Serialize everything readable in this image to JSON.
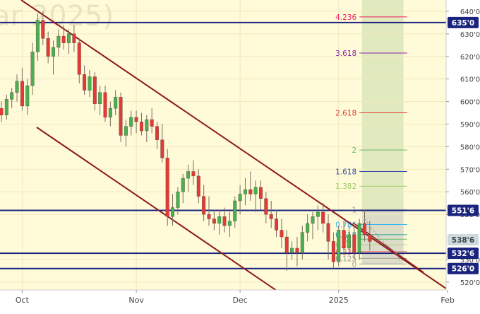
{
  "watermark": "ar 2025)",
  "chart_data": {
    "type": "candlestick",
    "colors": {
      "background": "#fffbd9",
      "up": "#4caf50",
      "down": "#e53935",
      "wick": "#7a6a60",
      "channel": "#8b1a1a",
      "level": "#1a237e",
      "projection_zone": "#c8dca8",
      "axis_text": "#444444"
    },
    "y_axis": {
      "min": 516.5,
      "max": 645,
      "ticks": [
        "640'0",
        "630'0",
        "620'0",
        "610'0",
        "600'0",
        "590'0",
        "580'0",
        "570'0",
        "560'0",
        "550'0",
        "530'0",
        "520'0"
      ],
      "tick_values": [
        640,
        630,
        620,
        610,
        600,
        590,
        580,
        570,
        560,
        550,
        530,
        520
      ]
    },
    "x_axis": {
      "labels": [
        {
          "text": "Oct",
          "index": 4
        },
        {
          "text": "Nov",
          "index": 26
        },
        {
          "text": "Dec",
          "index": 46
        },
        {
          "text": "2025",
          "index": 65
        },
        {
          "text": "Feb",
          "index": 86
        }
      ]
    },
    "levels": [
      {
        "label": "635'0",
        "value": 635.0
      },
      {
        "label": "551'6",
        "value": 551.75
      },
      {
        "label": "532'6",
        "value": 532.75
      },
      {
        "label": "526'0",
        "value": 526.0
      }
    ],
    "last_price": {
      "label": "538'6",
      "value": 538.75
    },
    "fibonacci": [
      {
        "label": "0",
        "value": 528.0,
        "color": "#9e9e9e"
      },
      {
        "label": "0.125",
        "value": 530.5,
        "color": "#9e9e9e"
      },
      {
        "label": "0.236",
        "value": 533.5,
        "color": "#e57373"
      },
      {
        "label": "0.382",
        "value": 536.5,
        "color": "#aed581"
      },
      {
        "label": "0.5",
        "value": 539.0,
        "color": "#66bb6a"
      },
      {
        "label": "0.618",
        "value": 541.0,
        "color": "#26a69a"
      },
      {
        "label": "0.786",
        "value": 545.5,
        "color": "#29b6f6"
      },
      {
        "label": "1",
        "value": 552.0,
        "color": "#9e9e9e"
      },
      {
        "label": "1.382",
        "value": 562.5,
        "color": "#9ccc65"
      },
      {
        "label": "1.618",
        "value": 569.0,
        "color": "#3949ab"
      },
      {
        "label": "2",
        "value": 578.5,
        "color": "#66bb6a"
      },
      {
        "label": "2.618",
        "value": 595.0,
        "color": "#e53935"
      },
      {
        "label": "3.618",
        "value": 621.5,
        "color": "#8e24aa"
      },
      {
        "label": "4.236",
        "value": 637.5,
        "color": "#e91e63"
      }
    ],
    "candles": [
      [
        597,
        600,
        591,
        594
      ],
      [
        594,
        603,
        592,
        601
      ],
      [
        601,
        606,
        597,
        604
      ],
      [
        604,
        612,
        600,
        609
      ],
      [
        609,
        615,
        596,
        598
      ],
      [
        598,
        610,
        594,
        607
      ],
      [
        607,
        626,
        603,
        622
      ],
      [
        622,
        639,
        618,
        636
      ],
      [
        636,
        640,
        625,
        628
      ],
      [
        628,
        631,
        617,
        620
      ],
      [
        620,
        627,
        612,
        624
      ],
      [
        624,
        632,
        620,
        629
      ],
      [
        629,
        634,
        623,
        626
      ],
      [
        626,
        632,
        621,
        630
      ],
      [
        630,
        634,
        622,
        626
      ],
      [
        626,
        628,
        608,
        612
      ],
      [
        612,
        616,
        603,
        605
      ],
      [
        605,
        614,
        602,
        611
      ],
      [
        611,
        613,
        596,
        599
      ],
      [
        599,
        607,
        594,
        604
      ],
      [
        604,
        607,
        591,
        593
      ],
      [
        593,
        600,
        589,
        597
      ],
      [
        597,
        605,
        594,
        602
      ],
      [
        602,
        604,
        582,
        585
      ],
      [
        585,
        592,
        580,
        589
      ],
      [
        589,
        596,
        585,
        593
      ],
      [
        593,
        596,
        586,
        591
      ],
      [
        591,
        595,
        585,
        587
      ],
      [
        587,
        594,
        582,
        592
      ],
      [
        592,
        597,
        586,
        589
      ],
      [
        589,
        591,
        579,
        583
      ],
      [
        583,
        590,
        573,
        575
      ],
      [
        575,
        579,
        545,
        549
      ],
      [
        549,
        559,
        545,
        553
      ],
      [
        553,
        562,
        550,
        560
      ],
      [
        560,
        568,
        555,
        566
      ],
      [
        566,
        572,
        560,
        569
      ],
      [
        569,
        574,
        563,
        567
      ],
      [
        567,
        570,
        555,
        558
      ],
      [
        558,
        563,
        547,
        550
      ],
      [
        550,
        558,
        545,
        548
      ],
      [
        548,
        552,
        543,
        546
      ],
      [
        546,
        552,
        541,
        549
      ],
      [
        549,
        553,
        542,
        545
      ],
      [
        545,
        551,
        540,
        547
      ],
      [
        547,
        558,
        544,
        556
      ],
      [
        556,
        563,
        550,
        559
      ],
      [
        559,
        566,
        554,
        561
      ],
      [
        561,
        569,
        556,
        559
      ],
      [
        559,
        565,
        551,
        562
      ],
      [
        562,
        565,
        552,
        557
      ],
      [
        557,
        560,
        546,
        550
      ],
      [
        550,
        556,
        544,
        548
      ],
      [
        548,
        552,
        540,
        543
      ],
      [
        543,
        548,
        535,
        540
      ],
      [
        540,
        543,
        525,
        533
      ],
      [
        533,
        538,
        530,
        535
      ],
      [
        535,
        540,
        527,
        533
      ],
      [
        533,
        545,
        530,
        542
      ],
      [
        542,
        550,
        538,
        546
      ],
      [
        546,
        551,
        539,
        549
      ],
      [
        549,
        554,
        543,
        551
      ],
      [
        551,
        555,
        542,
        546
      ],
      [
        546,
        550,
        530,
        538
      ],
      [
        538,
        542,
        526,
        529
      ],
      [
        529,
        545,
        527,
        543
      ],
      [
        543,
        547,
        532,
        535
      ],
      [
        535,
        545,
        533,
        541
      ],
      [
        541,
        545,
        530,
        533
      ],
      [
        533,
        548,
        530,
        546
      ],
      [
        546,
        552,
        538,
        541
      ],
      [
        541,
        547,
        534,
        538
      ]
    ],
    "forecast_path": [
      [
        70,
        548
      ],
      [
        72,
        542
      ],
      [
        74,
        537
      ],
      [
        76,
        533
      ],
      [
        77,
        529
      ]
    ]
  }
}
